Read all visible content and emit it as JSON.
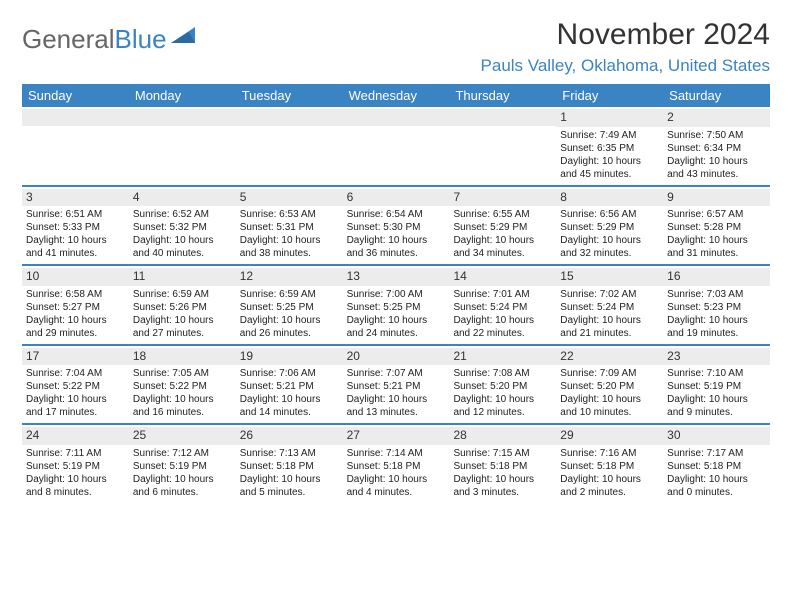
{
  "logo": {
    "text1": "General",
    "text2": "Blue"
  },
  "title": "November 2024",
  "location": "Pauls Valley, Oklahoma, United States",
  "colors": {
    "brand_blue": "#3b84c4",
    "header_text": "#ffffff",
    "daynum_bg": "#ececec",
    "text": "#222222",
    "logo_gray": "#666666"
  },
  "day_headers": [
    "Sunday",
    "Monday",
    "Tuesday",
    "Wednesday",
    "Thursday",
    "Friday",
    "Saturday"
  ],
  "weeks": [
    [
      {
        "n": "",
        "sr": "",
        "ss": "",
        "dl": ""
      },
      {
        "n": "",
        "sr": "",
        "ss": "",
        "dl": ""
      },
      {
        "n": "",
        "sr": "",
        "ss": "",
        "dl": ""
      },
      {
        "n": "",
        "sr": "",
        "ss": "",
        "dl": ""
      },
      {
        "n": "",
        "sr": "",
        "ss": "",
        "dl": ""
      },
      {
        "n": "1",
        "sr": "Sunrise: 7:49 AM",
        "ss": "Sunset: 6:35 PM",
        "dl": "Daylight: 10 hours and 45 minutes."
      },
      {
        "n": "2",
        "sr": "Sunrise: 7:50 AM",
        "ss": "Sunset: 6:34 PM",
        "dl": "Daylight: 10 hours and 43 minutes."
      }
    ],
    [
      {
        "n": "3",
        "sr": "Sunrise: 6:51 AM",
        "ss": "Sunset: 5:33 PM",
        "dl": "Daylight: 10 hours and 41 minutes."
      },
      {
        "n": "4",
        "sr": "Sunrise: 6:52 AM",
        "ss": "Sunset: 5:32 PM",
        "dl": "Daylight: 10 hours and 40 minutes."
      },
      {
        "n": "5",
        "sr": "Sunrise: 6:53 AM",
        "ss": "Sunset: 5:31 PM",
        "dl": "Daylight: 10 hours and 38 minutes."
      },
      {
        "n": "6",
        "sr": "Sunrise: 6:54 AM",
        "ss": "Sunset: 5:30 PM",
        "dl": "Daylight: 10 hours and 36 minutes."
      },
      {
        "n": "7",
        "sr": "Sunrise: 6:55 AM",
        "ss": "Sunset: 5:29 PM",
        "dl": "Daylight: 10 hours and 34 minutes."
      },
      {
        "n": "8",
        "sr": "Sunrise: 6:56 AM",
        "ss": "Sunset: 5:29 PM",
        "dl": "Daylight: 10 hours and 32 minutes."
      },
      {
        "n": "9",
        "sr": "Sunrise: 6:57 AM",
        "ss": "Sunset: 5:28 PM",
        "dl": "Daylight: 10 hours and 31 minutes."
      }
    ],
    [
      {
        "n": "10",
        "sr": "Sunrise: 6:58 AM",
        "ss": "Sunset: 5:27 PM",
        "dl": "Daylight: 10 hours and 29 minutes."
      },
      {
        "n": "11",
        "sr": "Sunrise: 6:59 AM",
        "ss": "Sunset: 5:26 PM",
        "dl": "Daylight: 10 hours and 27 minutes."
      },
      {
        "n": "12",
        "sr": "Sunrise: 6:59 AM",
        "ss": "Sunset: 5:25 PM",
        "dl": "Daylight: 10 hours and 26 minutes."
      },
      {
        "n": "13",
        "sr": "Sunrise: 7:00 AM",
        "ss": "Sunset: 5:25 PM",
        "dl": "Daylight: 10 hours and 24 minutes."
      },
      {
        "n": "14",
        "sr": "Sunrise: 7:01 AM",
        "ss": "Sunset: 5:24 PM",
        "dl": "Daylight: 10 hours and 22 minutes."
      },
      {
        "n": "15",
        "sr": "Sunrise: 7:02 AM",
        "ss": "Sunset: 5:24 PM",
        "dl": "Daylight: 10 hours and 21 minutes."
      },
      {
        "n": "16",
        "sr": "Sunrise: 7:03 AM",
        "ss": "Sunset: 5:23 PM",
        "dl": "Daylight: 10 hours and 19 minutes."
      }
    ],
    [
      {
        "n": "17",
        "sr": "Sunrise: 7:04 AM",
        "ss": "Sunset: 5:22 PM",
        "dl": "Daylight: 10 hours and 17 minutes."
      },
      {
        "n": "18",
        "sr": "Sunrise: 7:05 AM",
        "ss": "Sunset: 5:22 PM",
        "dl": "Daylight: 10 hours and 16 minutes."
      },
      {
        "n": "19",
        "sr": "Sunrise: 7:06 AM",
        "ss": "Sunset: 5:21 PM",
        "dl": "Daylight: 10 hours and 14 minutes."
      },
      {
        "n": "20",
        "sr": "Sunrise: 7:07 AM",
        "ss": "Sunset: 5:21 PM",
        "dl": "Daylight: 10 hours and 13 minutes."
      },
      {
        "n": "21",
        "sr": "Sunrise: 7:08 AM",
        "ss": "Sunset: 5:20 PM",
        "dl": "Daylight: 10 hours and 12 minutes."
      },
      {
        "n": "22",
        "sr": "Sunrise: 7:09 AM",
        "ss": "Sunset: 5:20 PM",
        "dl": "Daylight: 10 hours and 10 minutes."
      },
      {
        "n": "23",
        "sr": "Sunrise: 7:10 AM",
        "ss": "Sunset: 5:19 PM",
        "dl": "Daylight: 10 hours and 9 minutes."
      }
    ],
    [
      {
        "n": "24",
        "sr": "Sunrise: 7:11 AM",
        "ss": "Sunset: 5:19 PM",
        "dl": "Daylight: 10 hours and 8 minutes."
      },
      {
        "n": "25",
        "sr": "Sunrise: 7:12 AM",
        "ss": "Sunset: 5:19 PM",
        "dl": "Daylight: 10 hours and 6 minutes."
      },
      {
        "n": "26",
        "sr": "Sunrise: 7:13 AM",
        "ss": "Sunset: 5:18 PM",
        "dl": "Daylight: 10 hours and 5 minutes."
      },
      {
        "n": "27",
        "sr": "Sunrise: 7:14 AM",
        "ss": "Sunset: 5:18 PM",
        "dl": "Daylight: 10 hours and 4 minutes."
      },
      {
        "n": "28",
        "sr": "Sunrise: 7:15 AM",
        "ss": "Sunset: 5:18 PM",
        "dl": "Daylight: 10 hours and 3 minutes."
      },
      {
        "n": "29",
        "sr": "Sunrise: 7:16 AM",
        "ss": "Sunset: 5:18 PM",
        "dl": "Daylight: 10 hours and 2 minutes."
      },
      {
        "n": "30",
        "sr": "Sunrise: 7:17 AM",
        "ss": "Sunset: 5:18 PM",
        "dl": "Daylight: 10 hours and 0 minutes."
      }
    ]
  ]
}
